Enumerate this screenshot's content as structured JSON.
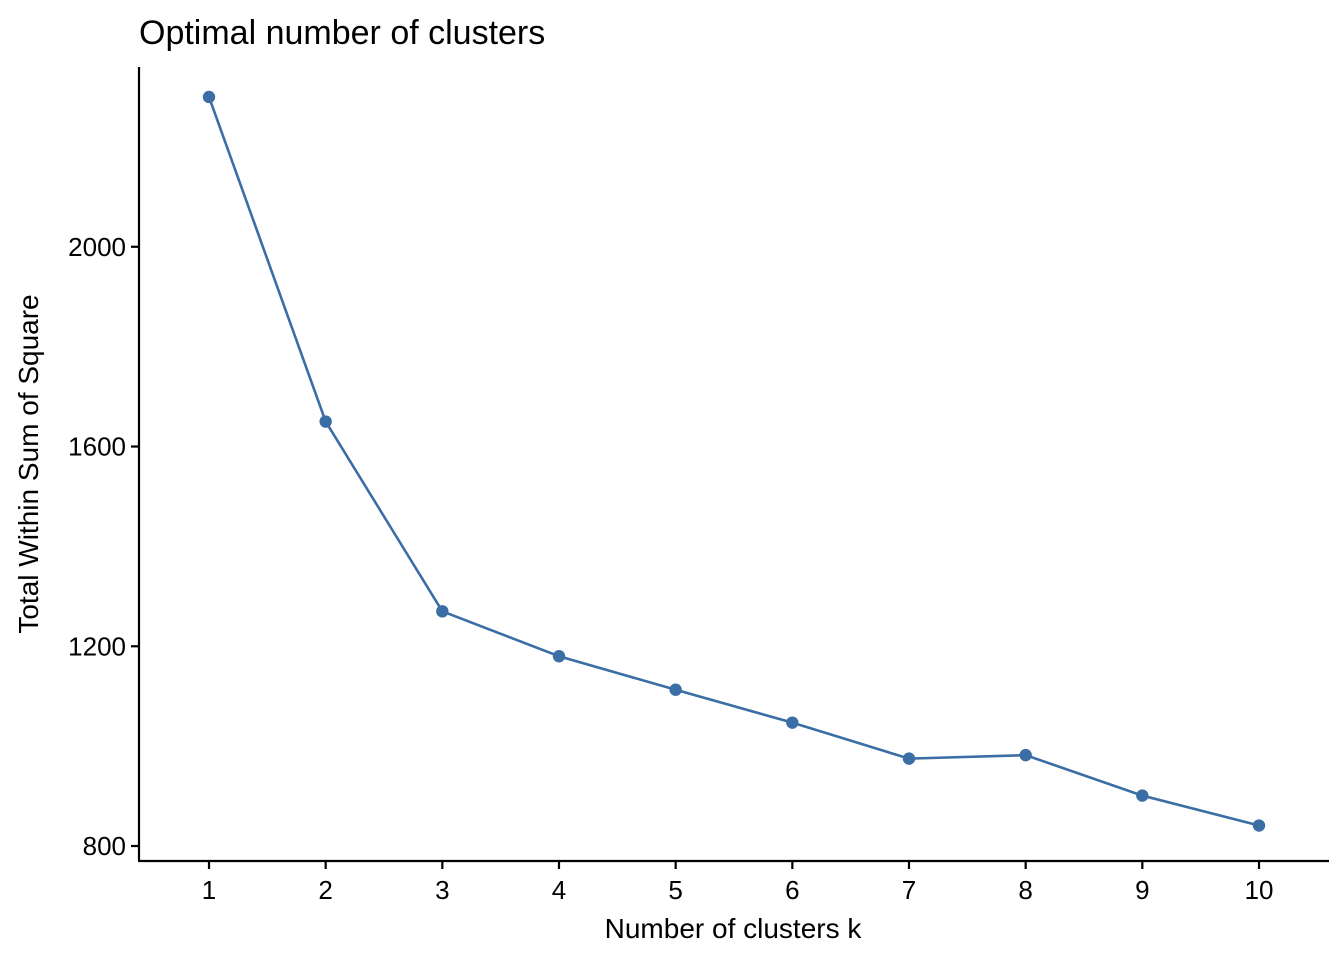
{
  "chart_data": {
    "type": "line",
    "title": "Optimal number of clusters",
    "xlabel": "Number of clusters k",
    "ylabel": "Total Within Sum of Square",
    "x": [
      1,
      2,
      3,
      4,
      5,
      6,
      7,
      8,
      9,
      10
    ],
    "x_tick_labels": [
      "1",
      "2",
      "3",
      "4",
      "5",
      "6",
      "7",
      "8",
      "9",
      "10"
    ],
    "y_ticks": [
      800,
      1200,
      1600,
      2000
    ],
    "y_tick_labels": [
      "800",
      "1200",
      "1600",
      "2000"
    ],
    "xlim": [
      0.4,
      10.6
    ],
    "ylim": [
      770,
      2360
    ],
    "grid": false,
    "legend": "none",
    "series": [
      {
        "values": [
          2300,
          1650,
          1270,
          1180,
          1113,
          1047,
          975,
          982,
          901,
          841
        ],
        "color": "#3a6ea5"
      }
    ]
  }
}
